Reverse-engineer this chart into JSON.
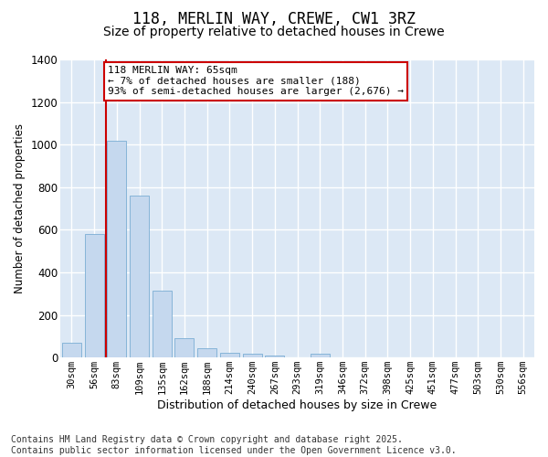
{
  "title": "118, MERLIN WAY, CREWE, CW1 3RZ",
  "subtitle": "Size of property relative to detached houses in Crewe",
  "xlabel": "Distribution of detached houses by size in Crewe",
  "ylabel": "Number of detached properties",
  "categories": [
    "30sqm",
    "56sqm",
    "83sqm",
    "109sqm",
    "135sqm",
    "162sqm",
    "188sqm",
    "214sqm",
    "240sqm",
    "267sqm",
    "293sqm",
    "319sqm",
    "346sqm",
    "372sqm",
    "398sqm",
    "425sqm",
    "451sqm",
    "477sqm",
    "503sqm",
    "530sqm",
    "556sqm"
  ],
  "values": [
    70,
    580,
    1020,
    760,
    315,
    90,
    43,
    22,
    17,
    10,
    0,
    18,
    0,
    0,
    0,
    0,
    0,
    0,
    0,
    0,
    0
  ],
  "bar_color": "#c5d8ee",
  "bar_edge_color": "#7aadd4",
  "vline_index": 1,
  "vline_color": "#cc0000",
  "annotation_text": "118 MERLIN WAY: 65sqm\n← 7% of detached houses are smaller (188)\n93% of semi-detached houses are larger (2,676) →",
  "annotation_box_edgecolor": "#cc0000",
  "annotation_box_facecolor": "#ffffff",
  "ylim": [
    0,
    1400
  ],
  "yticks": [
    0,
    200,
    400,
    600,
    800,
    1000,
    1200,
    1400
  ],
  "plot_bg_color": "#dce8f5",
  "fig_bg_color": "#ffffff",
  "grid_color": "#ffffff",
  "footer_line1": "Contains HM Land Registry data © Crown copyright and database right 2025.",
  "footer_line2": "Contains public sector information licensed under the Open Government Licence v3.0.",
  "title_fontsize": 12,
  "subtitle_fontsize": 10,
  "ylabel_fontsize": 8.5,
  "xlabel_fontsize": 9,
  "ytick_fontsize": 8.5,
  "xtick_fontsize": 7.5,
  "annotation_fontsize": 8,
  "footer_fontsize": 7
}
